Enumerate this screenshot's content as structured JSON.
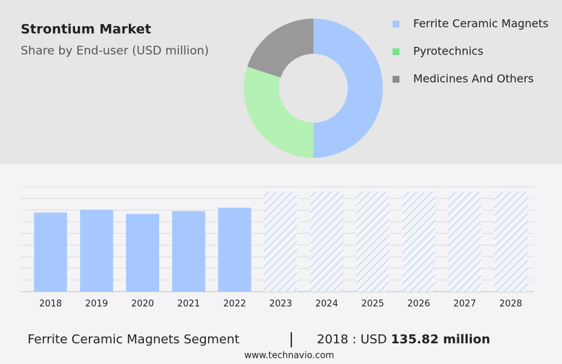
{
  "chart_data": [
    {
      "type": "donut",
      "title": "Strontium Market",
      "subtitle": "Share by End-user (USD million)",
      "categories": [
        "Ferrite Ceramic Magnets",
        "Pyrotechnics",
        "Medicines And Others"
      ],
      "values": [
        50,
        30,
        20
      ],
      "colors": [
        "#a6c8ff",
        "#b5f0b5",
        "#999999"
      ],
      "legend_colors": [
        "#a6c8ff",
        "#7ee08c",
        "#8c8c8c"
      ]
    },
    {
      "type": "bar",
      "categories": [
        "2018",
        "2019",
        "2020",
        "2021",
        "2022",
        "2023",
        "2024",
        "2025",
        "2026",
        "2027",
        "2028"
      ],
      "values": [
        135.82,
        140.5,
        133.5,
        138.2,
        144.1,
        null,
        null,
        null,
        null,
        null,
        null
      ],
      "color": "#a6c8ff",
      "ylim": [
        0,
        180
      ]
    }
  ],
  "footer": {
    "segment": "Ferrite Ceramic Magnets Segment",
    "label": "2018 : USD",
    "value": "135.82 million",
    "site": "www.technavio.com"
  }
}
